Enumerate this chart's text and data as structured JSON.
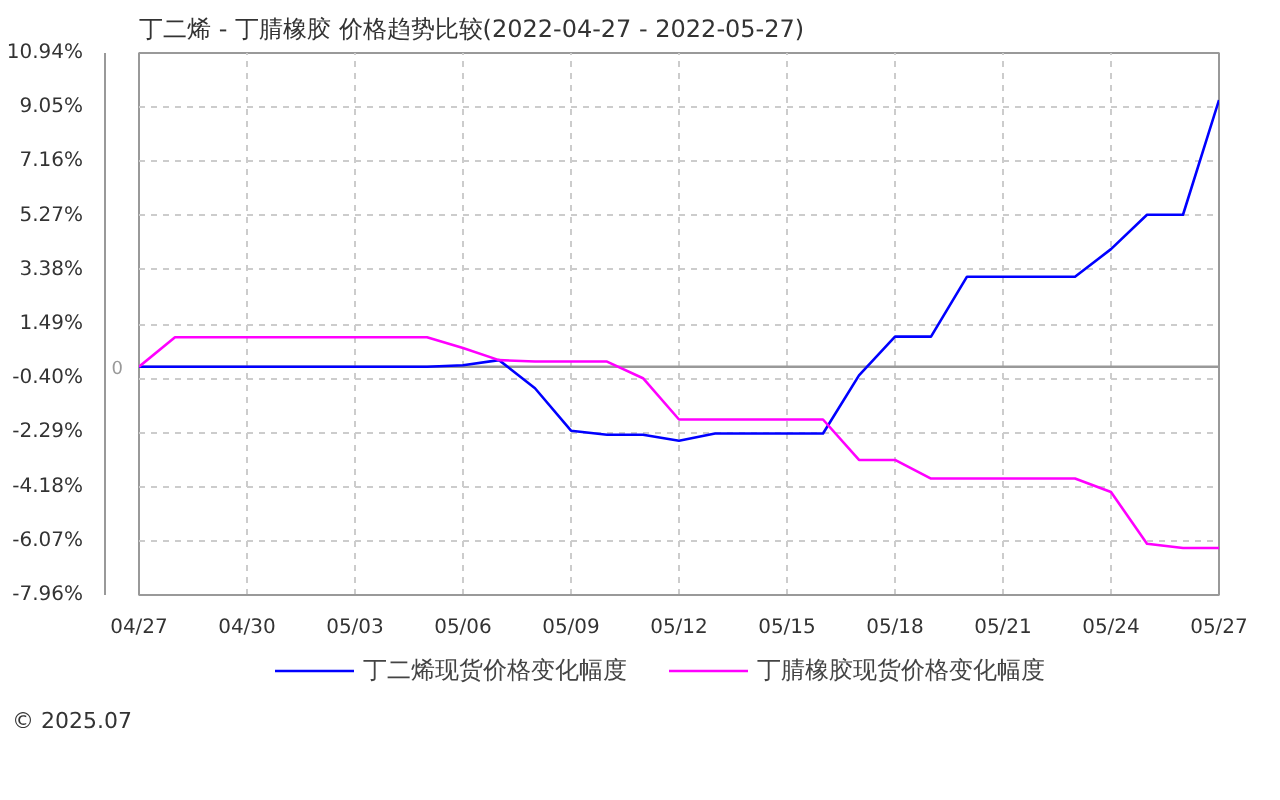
{
  "chart_data": {
    "type": "line",
    "title": "丁二烯 - 丁腈橡胶 价格趋势比较(2022-04-27 - 2022-05-27)",
    "x": [
      "2022-04-27",
      "2022-04-28",
      "2022-04-29",
      "2022-04-30",
      "2022-05-01",
      "2022-05-02",
      "2022-05-03",
      "2022-05-04",
      "2022-05-05",
      "2022-05-06",
      "2022-05-07",
      "2022-05-08",
      "2022-05-09",
      "2022-05-10",
      "2022-05-11",
      "2022-05-12",
      "2022-05-13",
      "2022-05-14",
      "2022-05-15",
      "2022-05-16",
      "2022-05-17",
      "2022-05-18",
      "2022-05-19",
      "2022-05-20",
      "2022-05-21",
      "2022-05-22",
      "2022-05-23",
      "2022-05-24",
      "2022-05-25",
      "2022-05-26",
      "2022-05-27"
    ],
    "series": [
      {
        "name": "丁二烯现货价格变化幅度",
        "color": "#0000ff",
        "values": [
          0,
          0,
          0,
          0,
          0,
          0,
          0,
          0,
          0,
          0.05,
          0.23,
          -0.75,
          -2.23,
          -2.37,
          -2.37,
          -2.58,
          -2.33,
          -2.33,
          -2.33,
          -2.33,
          -0.3,
          1.05,
          1.05,
          3.14,
          3.14,
          3.14,
          3.14,
          4.1,
          5.3,
          5.3,
          9.3
        ]
      },
      {
        "name": "丁腈橡胶现货价格变化幅度",
        "color": "#ff00ff",
        "values": [
          0,
          1.03,
          1.03,
          1.03,
          1.03,
          1.03,
          1.03,
          1.03,
          1.03,
          0.65,
          0.23,
          0.18,
          0.18,
          0.18,
          -0.4,
          -1.84,
          -1.84,
          -1.84,
          -1.84,
          -1.84,
          -3.25,
          -3.25,
          -3.9,
          -3.9,
          -3.9,
          -3.9,
          -3.9,
          -4.37,
          -6.17,
          -6.32,
          -6.32
        ]
      }
    ],
    "xlim": [
      "2022-04-27",
      "2022-05-27"
    ],
    "xticks": [
      {
        "value": "2022-04-27",
        "label": "04/27"
      },
      {
        "value": "2022-04-30",
        "label": "04/30"
      },
      {
        "value": "2022-05-03",
        "label": "05/03"
      },
      {
        "value": "2022-05-06",
        "label": "05/06"
      },
      {
        "value": "2022-05-09",
        "label": "05/09"
      },
      {
        "value": "2022-05-12",
        "label": "05/12"
      },
      {
        "value": "2022-05-15",
        "label": "05/15"
      },
      {
        "value": "2022-05-18",
        "label": "05/18"
      },
      {
        "value": "2022-05-21",
        "label": "05/21"
      },
      {
        "value": "2022-05-24",
        "label": "05/24"
      },
      {
        "value": "2022-05-27",
        "label": "05/27"
      }
    ],
    "ylim": [
      -7.96,
      10.94
    ],
    "yticks": [
      {
        "value": 10.94,
        "label": "10.94%"
      },
      {
        "value": 9.05,
        "label": "9.05%"
      },
      {
        "value": 7.16,
        "label": "7.16%"
      },
      {
        "value": 5.27,
        "label": "5.27%"
      },
      {
        "value": 3.38,
        "label": "3.38%"
      },
      {
        "value": 1.49,
        "label": "1.49%"
      },
      {
        "value": -0.4,
        "label": "-0.40%"
      },
      {
        "value": -2.29,
        "label": "-2.29%"
      },
      {
        "value": -4.18,
        "label": "-4.18%"
      },
      {
        "value": -6.07,
        "label": "-6.07%"
      },
      {
        "value": -7.96,
        "label": "-7.96%"
      }
    ],
    "ref_lines": [
      {
        "axis": "y",
        "value": 0,
        "color": "#999999",
        "label": "0"
      }
    ],
    "grid": true,
    "legend": "bottom",
    "line_style": "solid",
    "marker": "none",
    "annotations": [
      "© 2025.07"
    ]
  }
}
